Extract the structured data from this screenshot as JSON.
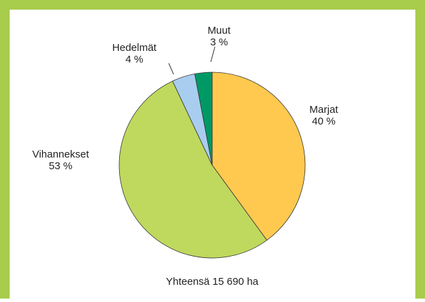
{
  "chart_data": {
    "type": "pie",
    "categories": [
      "Marjat",
      "Vihannekset",
      "Hedelmät",
      "Muut"
    ],
    "values": [
      40,
      53,
      4,
      3
    ],
    "value_labels": [
      "40 %",
      "53 %",
      "4 %",
      "3 %"
    ],
    "colors": [
      "#ffc94f",
      "#bfd95e",
      "#a9cdee",
      "#009966"
    ],
    "annotation": "Yhteensä 15 690 ha"
  }
}
